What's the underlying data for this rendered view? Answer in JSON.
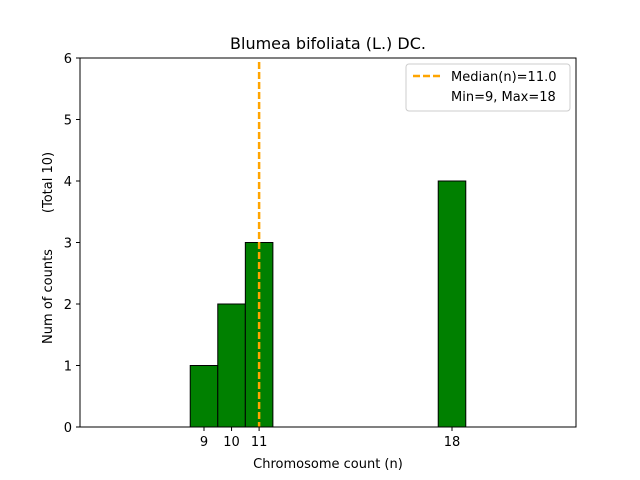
{
  "chart_data": {
    "type": "bar",
    "title": "Blumea bifoliata (L.) DC.",
    "xlabel": "Chromosome count (n)",
    "ylabel": "Num of counts",
    "ylabel_note": "(Total 10)",
    "categories": [
      9,
      10,
      11,
      18
    ],
    "values": [
      1,
      2,
      3,
      4
    ],
    "x_ticks": [
      "9",
      "10",
      "11",
      "18"
    ],
    "y_ticks": [
      "0",
      "1",
      "2",
      "3",
      "4",
      "5",
      "6"
    ],
    "xlim": [
      4.5,
      22.5
    ],
    "ylim": [
      0,
      6
    ],
    "bar_width": 1,
    "bar_color": "#008000",
    "median": 11.0,
    "median_color": "#ffa500",
    "legend": {
      "position": "top-right",
      "entries": [
        "Median(n)=11.0",
        "Min=9, Max=18"
      ]
    },
    "grid": false
  }
}
